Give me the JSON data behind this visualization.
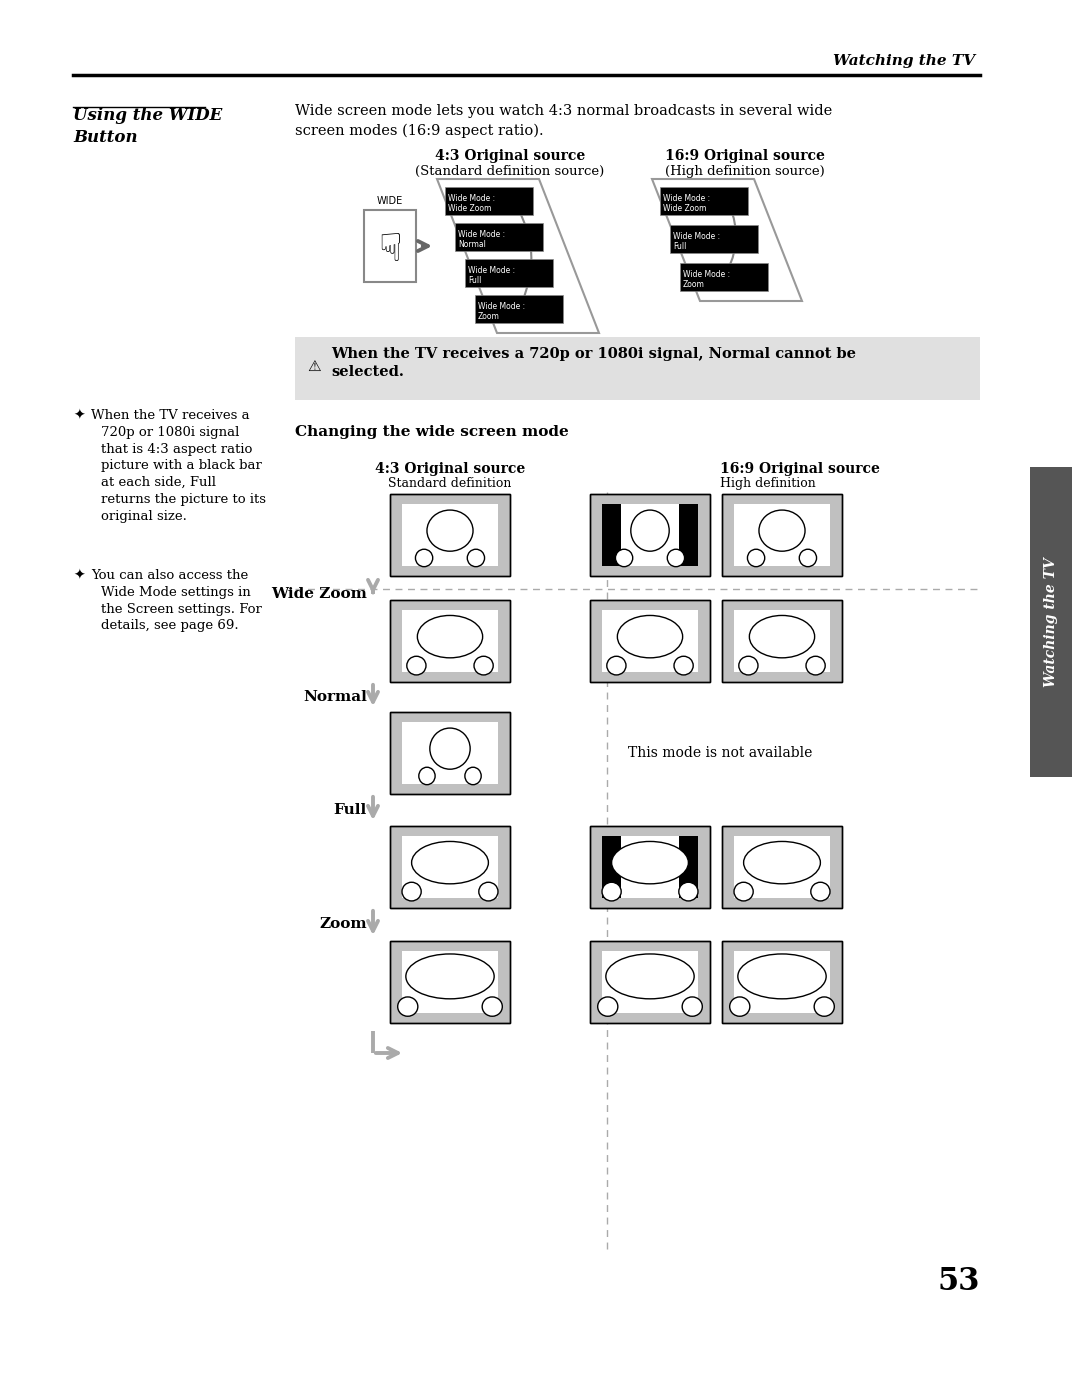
{
  "bg_color": "#ffffff",
  "page_number": "53",
  "header_text": "Watching the TV",
  "section_title": "Using the WIDE\nButton",
  "intro_text": "Wide screen mode lets you watch 4:3 normal broadcasts in several wide\nscreen modes (16:9 aspect ratio).",
  "col1_header": "4:3 Original source",
  "col1_subheader": "(Standard definition source)",
  "col2_header": "16:9 Original source",
  "col2_subheader": "(High definition source)",
  "note_line1": "When the TV receives a 720p or 1080i signal, Normal cannot be",
  "note_line2": "selected.",
  "left_note1": [
    "When the TV receives a",
    "720p or 1080i signal",
    "that is 4:3 aspect ratio",
    "picture with a black bar",
    "at each side, Full",
    "returns the picture to its",
    "original size."
  ],
  "left_note2": [
    "You can also access the",
    "Wide Mode settings in",
    "the Screen settings. For",
    "details, see page 69."
  ],
  "changing_title": "Changing the wide screen mode",
  "col_43_header": "4:3 Original source",
  "col_43_sub": "Standard definition",
  "col_169_header": "16:9 Original source",
  "col_169_sub": "High definition",
  "modes": [
    "Wide Zoom",
    "Normal",
    "Full",
    "Zoom"
  ],
  "mode_not_available": "This mode is not available",
  "sidebar_text": "Watching the TV",
  "menu_items_left": [
    "Wide Mode :\nWide Zoom",
    "Wide Mode :\nNormal",
    "Wide Mode :\nFull",
    "Wide Mode :\nZoom"
  ],
  "menu_items_right": [
    "Wide Mode :\nWide Zoom",
    "Wide Mode :\nFull",
    "Wide Mode :\nZoom"
  ],
  "arrow_color": "#aaaaaa",
  "note_bg": "#e0e0e0",
  "sidebar_color": "#555555",
  "screen_gray": "#c0c0c0"
}
